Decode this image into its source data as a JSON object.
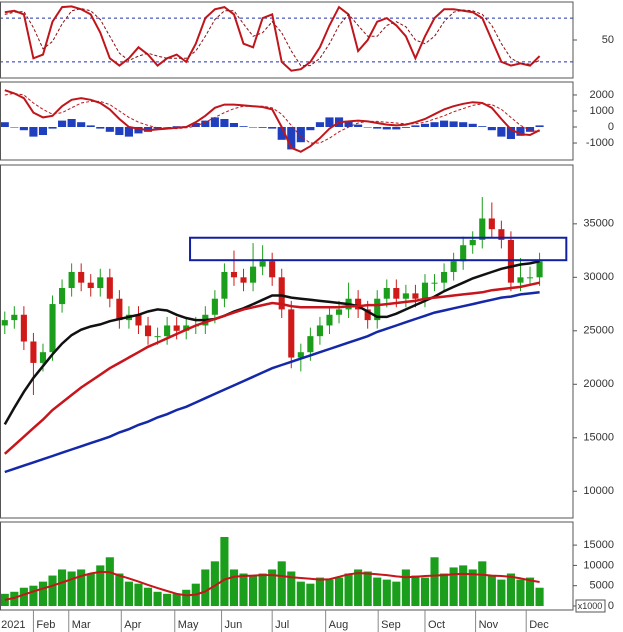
{
  "chart_data": [
    {
      "type": "line",
      "ylim": [
        -2,
        102
      ],
      "yticks": [
        50
      ],
      "reference_lines": [
        80,
        20
      ],
      "reference_color": "#2030b0",
      "series": [
        {
          "color": "#c0161b",
          "width": 2,
          "dashed": false,
          "values": [
            88,
            90,
            85,
            25,
            30,
            75,
            95,
            96,
            92,
            85,
            60,
            25,
            15,
            25,
            40,
            30,
            15,
            25,
            30,
            20,
            45,
            80,
            92,
            95,
            85,
            45,
            40,
            80,
            85,
            20,
            8,
            10,
            20,
            40,
            70,
            95,
            85,
            35,
            50,
            75,
            80,
            70,
            55,
            25,
            55,
            80,
            92,
            92,
            90,
            88,
            80,
            50,
            20,
            15,
            18,
            15,
            28
          ]
        },
        {
          "color": "#8a1015",
          "width": 1,
          "dashed": true,
          "values": [
            85,
            88,
            89,
            67,
            38,
            48,
            72,
            90,
            93,
            90,
            78,
            55,
            32,
            22,
            28,
            32,
            28,
            25,
            25,
            25,
            35,
            55,
            78,
            90,
            90,
            72,
            55,
            60,
            75,
            60,
            35,
            15,
            15,
            25,
            45,
            70,
            85,
            70,
            55,
            55,
            70,
            75,
            68,
            50,
            45,
            55,
            75,
            88,
            91,
            90,
            85,
            70,
            45,
            25,
            18,
            17,
            22
          ]
        }
      ]
    },
    {
      "type": "combo",
      "ylim": [
        -2060,
        2810
      ],
      "yticks": [
        2000,
        1000,
        0,
        -1000
      ],
      "series": [
        {
          "kind": "bar",
          "color": "#1f3fbf",
          "values": [
            300,
            0,
            -200,
            -600,
            -500,
            -100,
            400,
            500,
            300,
            100,
            -100,
            -300,
            -500,
            -600,
            -400,
            -300,
            -100,
            0,
            50,
            50,
            250,
            400,
            600,
            500,
            250,
            50,
            0,
            -50,
            -100,
            -800,
            -1400,
            -950,
            -200,
            300,
            600,
            600,
            350,
            150,
            0,
            -100,
            -150,
            -150,
            -50,
            100,
            200,
            300,
            400,
            350,
            300,
            200,
            50,
            -200,
            -600,
            -750,
            -550,
            -300,
            100
          ]
        },
        {
          "kind": "line",
          "color": "#c0161b",
          "width": 2,
          "dashed": false,
          "values": [
            2300,
            2100,
            1800,
            900,
            600,
            700,
            1300,
            1700,
            1800,
            1700,
            1500,
            1100,
            500,
            0,
            -100,
            -200,
            -150,
            -100,
            -50,
            0,
            300,
            700,
            1200,
            1400,
            1400,
            1350,
            1300,
            1250,
            1100,
            0,
            -1300,
            -1550,
            -1200,
            -700,
            -100,
            300,
            350,
            400,
            350,
            250,
            150,
            100,
            150,
            300,
            500,
            800,
            1100,
            1300,
            1450,
            1550,
            1500,
            1200,
            500,
            -150,
            -450,
            -500,
            -200
          ]
        },
        {
          "kind": "line",
          "color": "#c0161b",
          "width": 1,
          "dashed": true,
          "values": [
            2000,
            2100,
            2000,
            1500,
            1100,
            800,
            900,
            1200,
            1500,
            1600,
            1600,
            1400,
            1000,
            600,
            300,
            100,
            -50,
            -100,
            -100,
            -50,
            50,
            300,
            600,
            900,
            1150,
            1300,
            1300,
            1300,
            1200,
            800,
            100,
            -600,
            -1000,
            -1000,
            -700,
            -300,
            0,
            250,
            350,
            350,
            300,
            250,
            200,
            200,
            300,
            500,
            700,
            950,
            1150,
            1350,
            1450,
            1400,
            1100,
            600,
            100,
            -200,
            -300
          ]
        }
      ]
    },
    {
      "type": "candlestick",
      "ylim": [
        7500,
        40500
      ],
      "yticks": [
        35000,
        30000,
        25000,
        20000,
        15000,
        10000
      ],
      "up_color": "#1b9e1b",
      "down_color": "#d01a1a",
      "open": [
        25500,
        26000,
        26500,
        24000,
        22000,
        23000,
        27500,
        29000,
        30500,
        29500,
        29000,
        30000,
        28000,
        26000,
        26500,
        25500,
        24500,
        24500,
        25500,
        25000,
        25500,
        25500,
        26500,
        28000,
        30500,
        30000,
        29500,
        31000,
        31500,
        30000,
        27000,
        22500,
        23000,
        24500,
        25500,
        26500,
        27000,
        28000,
        27000,
        26000,
        28000,
        29000,
        28000,
        28500,
        28000,
        29500,
        29500,
        30500,
        31500,
        33000,
        33500,
        35500,
        34500,
        33500,
        29500,
        30000,
        30000
      ],
      "high": [
        26800,
        27300,
        27300,
        24800,
        23800,
        28300,
        29800,
        31300,
        31300,
        30300,
        30800,
        30800,
        28800,
        27300,
        27300,
        26300,
        25300,
        26300,
        26300,
        26300,
        26300,
        27300,
        28800,
        31300,
        32500,
        30800,
        33200,
        33000,
        32300,
        30800,
        27800,
        23800,
        25300,
        26300,
        27300,
        27800,
        29500,
        28800,
        27800,
        28800,
        29800,
        29800,
        29300,
        29300,
        30300,
        30300,
        31300,
        32300,
        33800,
        34300,
        37500,
        37000,
        35300,
        34300,
        31800,
        31000,
        32300
      ],
      "low": [
        24700,
        25200,
        23200,
        19000,
        21200,
        22200,
        26700,
        28200,
        28700,
        28200,
        28200,
        27200,
        25200,
        25200,
        24700,
        23700,
        23700,
        23700,
        24200,
        24200,
        24700,
        24700,
        25700,
        27200,
        29200,
        28700,
        28700,
        30200,
        29200,
        26200,
        21500,
        21200,
        22200,
        23700,
        24700,
        25700,
        26200,
        26200,
        25200,
        25200,
        27200,
        27200,
        27200,
        27200,
        27200,
        28700,
        28700,
        29700,
        30700,
        32200,
        32700,
        33700,
        32700,
        28700,
        28700,
        29200,
        29200
      ],
      "close": [
        26000,
        26500,
        24000,
        22000,
        23000,
        27500,
        29000,
        30500,
        29500,
        29000,
        30000,
        28000,
        26000,
        26500,
        25500,
        24500,
        24500,
        25500,
        25000,
        25500,
        25500,
        26500,
        28000,
        30500,
        30000,
        29500,
        31000,
        31500,
        30000,
        27000,
        22500,
        23000,
        24500,
        25500,
        26500,
        27000,
        28000,
        27000,
        26000,
        28000,
        29000,
        28000,
        28500,
        28000,
        29500,
        29500,
        30500,
        31500,
        33000,
        33500,
        35500,
        34500,
        33500,
        29500,
        30000,
        30000,
        31500
      ],
      "lines": [
        {
          "color": "#111111",
          "width": 2.5,
          "values": [
            16250,
            17800,
            19300,
            20600,
            21700,
            22800,
            23800,
            24600,
            25100,
            25400,
            25600,
            25900,
            26100,
            26300,
            26500,
            26800,
            27000,
            26900,
            26500,
            26200,
            26000,
            26000,
            26100,
            26400,
            26800,
            27100,
            27500,
            27900,
            28300,
            28300,
            28100,
            28000,
            27900,
            27800,
            27700,
            27600,
            27500,
            27300,
            26800,
            26300,
            26300,
            26600,
            27000,
            27400,
            27800,
            28200,
            28700,
            29100,
            29500,
            29900,
            30200,
            30500,
            30800,
            31000,
            31200,
            31300,
            31500
          ]
        },
        {
          "color": "#c8141b",
          "width": 2.5,
          "values": [
            13500,
            14300,
            15100,
            15900,
            16700,
            17600,
            18300,
            19000,
            19700,
            20300,
            20900,
            21500,
            22000,
            22500,
            23000,
            23500,
            23900,
            24300,
            24700,
            25100,
            25500,
            25800,
            26100,
            26400,
            26700,
            27000,
            27200,
            27400,
            27600,
            27500,
            27300,
            27200,
            27200,
            27200,
            27200,
            27200,
            27300,
            27300,
            27400,
            27400,
            27500,
            27600,
            27700,
            27800,
            28000,
            28100,
            28200,
            28300,
            28400,
            28500,
            28600,
            28800,
            28900,
            29000,
            29100,
            29300,
            29500
          ]
        },
        {
          "color": "#1428a8",
          "width": 2.5,
          "values": [
            11800,
            12100,
            12400,
            12700,
            13000,
            13300,
            13600,
            13900,
            14200,
            14500,
            14800,
            15100,
            15500,
            15800,
            16200,
            16500,
            16900,
            17200,
            17600,
            17900,
            18300,
            18700,
            19100,
            19500,
            19900,
            20300,
            20700,
            21100,
            21500,
            21800,
            22100,
            22400,
            22700,
            23000,
            23300,
            23600,
            23900,
            24200,
            24500,
            24900,
            25200,
            25500,
            25800,
            26100,
            26400,
            26700,
            26900,
            27100,
            27300,
            27500,
            27700,
            27900,
            28100,
            28200,
            28400,
            28500,
            28600
          ]
        }
      ],
      "zone": {
        "x": [
          19.4,
          58.8
        ],
        "y": [
          31600,
          33700
        ],
        "color": "#1020a0"
      }
    },
    {
      "type": "bar",
      "ylim": [
        -985,
        20690
      ],
      "yticks": [
        15000,
        10000,
        5000,
        0
      ],
      "unit_label": "x1000",
      "x": [
        0,
        1,
        2,
        3,
        4,
        5,
        6,
        7,
        8,
        9,
        10,
        11,
        12,
        13,
        14,
        15,
        16,
        17,
        18,
        19,
        20,
        21,
        22,
        23,
        24,
        25,
        26,
        27,
        28,
        29,
        30,
        31,
        32,
        33,
        34,
        35,
        36,
        37,
        38,
        39,
        40,
        41,
        42,
        43,
        44,
        45,
        46,
        47,
        48,
        49,
        50,
        51,
        52,
        53,
        54,
        55,
        56
      ],
      "xlim": [
        -0.5,
        59.5
      ],
      "xticks": [
        {
          "value": -0.7,
          "label": "2021"
        },
        {
          "value": 3.0,
          "label": "Feb"
        },
        {
          "value": 6.7,
          "label": "Mar"
        },
        {
          "value": 12.2,
          "label": "Apr"
        },
        {
          "value": 17.8,
          "label": "May"
        },
        {
          "value": 22.7,
          "label": "Jun"
        },
        {
          "value": 28.0,
          "label": "Jul"
        },
        {
          "value": 33.6,
          "label": "Aug"
        },
        {
          "value": 39.1,
          "label": "Sep"
        },
        {
          "value": 44.0,
          "label": "Oct"
        },
        {
          "value": 49.3,
          "label": "Nov"
        },
        {
          "value": 54.6,
          "label": "Dec"
        }
      ],
      "series": [
        {
          "kind": "bar",
          "color": "#1b9e1b",
          "values": [
            3000,
            3500,
            4500,
            5000,
            6000,
            7500,
            9000,
            8500,
            9000,
            8000,
            10000,
            12000,
            8000,
            6000,
            5500,
            4500,
            3500,
            3000,
            3000,
            4000,
            5500,
            9000,
            11000,
            17000,
            9000,
            8000,
            7500,
            8000,
            9000,
            11000,
            8500,
            6000,
            5500,
            7000,
            6500,
            7000,
            8000,
            9000,
            8500,
            7000,
            6500,
            6000,
            9000,
            7500,
            7000,
            12000,
            8000,
            9500,
            10000,
            9000,
            11000,
            7500,
            6500,
            8000,
            6500,
            7000,
            4500
          ]
        },
        {
          "kind": "line",
          "color": "#c8141b",
          "width": 2,
          "dashed": false,
          "values": [
            1500,
            2000,
            2800,
            3600,
            4300,
            5000,
            5800,
            6600,
            7400,
            8000,
            8400,
            8300,
            7500,
            6800,
            6000,
            5200,
            4400,
            3700,
            3000,
            2600,
            2800,
            3600,
            5000,
            6500,
            7200,
            7400,
            7500,
            7600,
            7600,
            7400,
            7100,
            6900,
            6700,
            6500,
            6600,
            7200,
            7800,
            8100,
            8000,
            7800,
            7600,
            7300,
            7100,
            7200,
            7400,
            7500,
            7600,
            7800,
            7900,
            7800,
            7700,
            7500,
            7400,
            7200,
            6800,
            6300,
            5900
          ]
        }
      ]
    }
  ]
}
